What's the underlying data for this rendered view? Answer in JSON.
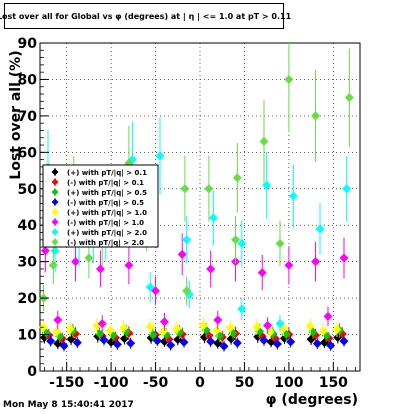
{
  "header": {
    "title": "Lost over all for Global vs φ (degrees) at | η | <= 1.0 at pT > 0.11"
  },
  "footer": {
    "timestamp": "Mon May  8 15:40:41 2017"
  },
  "chart_data": {
    "type": "scatter",
    "xlabel": "φ (degrees)",
    "ylabel": "Lost over all (%)",
    "xlim": [
      -180,
      180
    ],
    "ylim": [
      0,
      90
    ],
    "xticks": [
      "-150",
      "-100",
      "-50",
      "0",
      "50",
      "100",
      "150"
    ],
    "yticks": [
      "0",
      "10",
      "20",
      "30",
      "40",
      "50",
      "60",
      "70",
      "80",
      "90"
    ],
    "grid": true,
    "legend_position": "left",
    "series": [
      {
        "name": "(+) with pT/|q| > 0.1",
        "color": "#000000",
        "x": [
          -175,
          -145,
          -115,
          -85,
          -55,
          -25,
          5,
          35,
          65,
          95,
          125,
          155,
          -160,
          -100,
          -40,
          20,
          80,
          140
        ],
        "y": [
          9.2,
          8.7,
          9.5,
          8.9,
          9.1,
          8.6,
          9.3,
          8.8,
          9.4,
          9.0,
          8.7,
          9.2,
          7.5,
          7.9,
          8.1,
          7.6,
          8.0,
          7.8
        ]
      },
      {
        "name": "(-) with pT/|q| > 0.1",
        "color": "#ff0000",
        "x": [
          -170,
          -140,
          -110,
          -80,
          -50,
          -20,
          10,
          40,
          70,
          100,
          130,
          160,
          -155,
          -95,
          -35,
          25,
          85,
          145
        ],
        "y": [
          9.8,
          10.2,
          9.6,
          10.4,
          9.9,
          10.1,
          9.7,
          10.3,
          9.5,
          10.0,
          9.8,
          10.2,
          8.9,
          9.1,
          8.7,
          9.3,
          8.8,
          9.0
        ]
      },
      {
        "name": "(+) with pT/|q| > 0.5",
        "color": "#00cc00",
        "x": [
          -173,
          -143,
          -113,
          -83,
          -53,
          -23,
          7,
          37,
          67,
          97,
          127,
          157,
          -158,
          -98,
          -38,
          22,
          82,
          142
        ],
        "y": [
          10.5,
          11.0,
          10.2,
          10.8,
          9.9,
          10.6,
          11.2,
          10.4,
          10.9,
          10.1,
          10.7,
          11.1,
          9.5,
          9.8,
          10.0,
          9.6,
          10.3,
          9.7
        ]
      },
      {
        "name": "(-) with pT/|q| > 0.5",
        "color": "#0000ff",
        "x": [
          -168,
          -138,
          -108,
          -78,
          -48,
          -18,
          12,
          42,
          72,
          102,
          132,
          162,
          -153,
          -93,
          -33,
          27,
          87,
          147
        ],
        "y": [
          8.2,
          7.8,
          8.5,
          7.6,
          8.3,
          7.9,
          8.1,
          7.7,
          8.4,
          8.0,
          7.5,
          8.2,
          6.9,
          7.3,
          7.1,
          6.8,
          7.4,
          7.0
        ]
      },
      {
        "name": "(+) with pT/|q| > 1.0",
        "color": "#ffff00",
        "x": [
          -176,
          -146,
          -116,
          -86,
          -56,
          -26,
          4,
          34,
          64,
          94,
          124,
          154,
          -161,
          -101,
          -41,
          19,
          79,
          139
        ],
        "y": [
          12.0,
          11.5,
          12.4,
          11.8,
          12.2,
          11.6,
          12.5,
          11.9,
          12.1,
          11.7,
          12.3,
          11.4,
          10.8,
          11.1,
          10.9,
          11.2,
          10.7,
          11.0
        ]
      },
      {
        "name": "(-) with pT/|q| > 1.0",
        "color": "#ff00ff",
        "x": [
          -174,
          -140,
          -112,
          -80,
          -50,
          -20,
          12,
          40,
          70,
          100,
          130,
          162,
          -160,
          -110,
          -40,
          20,
          76,
          144
        ],
        "y": [
          33,
          30,
          28,
          29,
          22,
          32,
          28,
          30,
          27,
          29,
          30,
          31,
          14,
          13,
          13.5,
          14,
          12.5,
          15
        ]
      },
      {
        "name": "(+) with pT/|q| > 2.0",
        "color": "#00ffff",
        "x": [
          -171,
          -136,
          -106,
          -76,
          -45,
          -15,
          15,
          47,
          75,
          105,
          135,
          165,
          -163,
          -120,
          -56,
          -12,
          47,
          90
        ],
        "y": [
          56,
          35,
          37,
          58,
          59,
          36,
          42,
          35,
          51,
          48,
          39,
          50,
          33,
          36,
          23,
          21,
          17,
          13
        ]
      },
      {
        "name": "(-) with pT/|q| > 2.0",
        "color": "#66dd44",
        "x": [
          -176,
          -142,
          -110,
          -80,
          -52,
          -17,
          10,
          42,
          72,
          100,
          130,
          168,
          -165,
          -125,
          -60,
          -15,
          40,
          90
        ],
        "y": [
          20,
          50,
          35,
          57,
          47,
          50,
          50,
          53,
          63,
          80,
          70,
          75,
          29,
          31,
          40,
          22,
          36,
          35
        ]
      }
    ]
  }
}
